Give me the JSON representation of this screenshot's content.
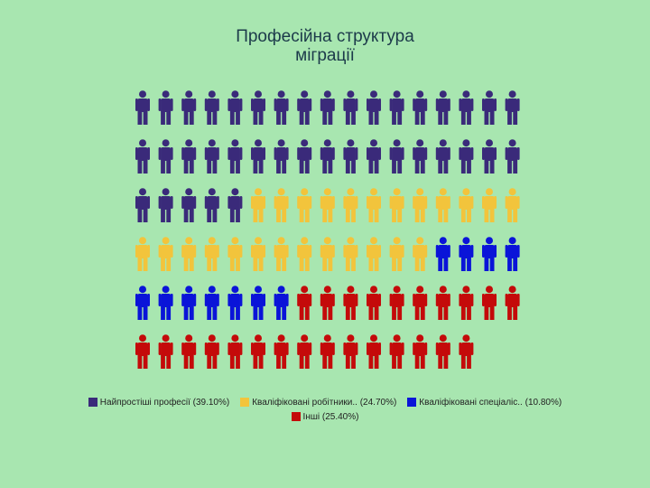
{
  "chart_data": {
    "type": "pictograph",
    "title_line1": "Професійна структура",
    "title_line2": "міграції",
    "icon": "person-icon",
    "units_per_row": 17,
    "series": [
      {
        "name": "Найпростіші професії",
        "percent_label": "(39.10%)",
        "value": 39.1,
        "icons": 39,
        "color": "#3a2a7a"
      },
      {
        "name": "Кваліфіковані робітники..",
        "percent_label": "(24.70%)",
        "value": 24.7,
        "icons": 25,
        "color": "#f2c43c"
      },
      {
        "name": "Кваліфіковані спеціаліс..",
        "percent_label": "(10.80%)",
        "value": 10.8,
        "icons": 11,
        "color": "#0a14d8"
      },
      {
        "name": "Інші",
        "percent_label": "(25.40%)",
        "value": 25.4,
        "icons": 25,
        "color": "#c40a0a"
      }
    ]
  }
}
